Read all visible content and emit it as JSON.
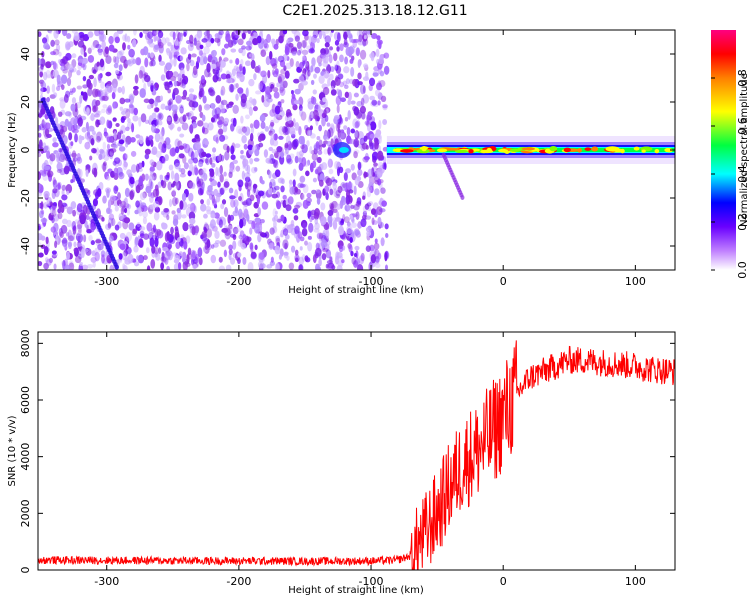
{
  "title": "C2E1.2025.313.18.12.G11",
  "chart_data": [
    {
      "type": "heatmap",
      "xlabel": "Height of straight line (km)",
      "ylabel": "Frequency (Hz)",
      "xlim": [
        -352,
        130
      ],
      "ylim": [
        -50,
        50
      ],
      "xticks": [
        -300,
        -200,
        -100,
        0,
        100
      ],
      "yticks": [
        -40,
        -20,
        0,
        20,
        40
      ],
      "colorbar": {
        "label": "Normalized spectral amplitude",
        "range": [
          0,
          1
        ],
        "ticks": [
          0.0,
          0.2,
          0.4,
          0.6,
          0.8
        ],
        "tick_labels": [
          "0.0",
          "0.2",
          "0.4",
          "0.6",
          "0.8"
        ],
        "colors": [
          "#ffffff",
          "#8a2be2",
          "#0000ff",
          "#00ffff",
          "#00ff00",
          "#ffff00",
          "#ff8000",
          "#ff0000",
          "#ff00aa"
        ]
      },
      "regions": [
        {
          "x_range": [
            -352,
            -88
          ],
          "description_values": {
            "amplitude": 0.1
          }
        },
        {
          "x_range": [
            -88,
            130
          ],
          "y_center": 0,
          "amplitude": 0.8
        }
      ]
    },
    {
      "type": "line",
      "xlabel": "Height of straight line (km)",
      "ylabel": "SNR (10 * v/v)",
      "xlim": [
        -352,
        130
      ],
      "ylim": [
        0,
        8400
      ],
      "xticks": [
        -300,
        -200,
        -100,
        0,
        100
      ],
      "yticks": [
        0,
        2000,
        4000,
        6000,
        8000
      ],
      "color": "#ff0000",
      "x": [
        -352,
        -300,
        -250,
        -200,
        -150,
        -100,
        -80,
        -70,
        -60,
        -50,
        -40,
        -30,
        -20,
        -10,
        0,
        10,
        20,
        30,
        40,
        50,
        60,
        70,
        80,
        90,
        100,
        110,
        120,
        130
      ],
      "y": [
        350,
        340,
        330,
        320,
        310,
        320,
        350,
        500,
        1200,
        2000,
        3000,
        3800,
        4200,
        4700,
        5400,
        6200,
        6800,
        7000,
        7200,
        7400,
        7400,
        7350,
        7300,
        7250,
        7200,
        7100,
        7050,
        7000
      ]
    }
  ]
}
